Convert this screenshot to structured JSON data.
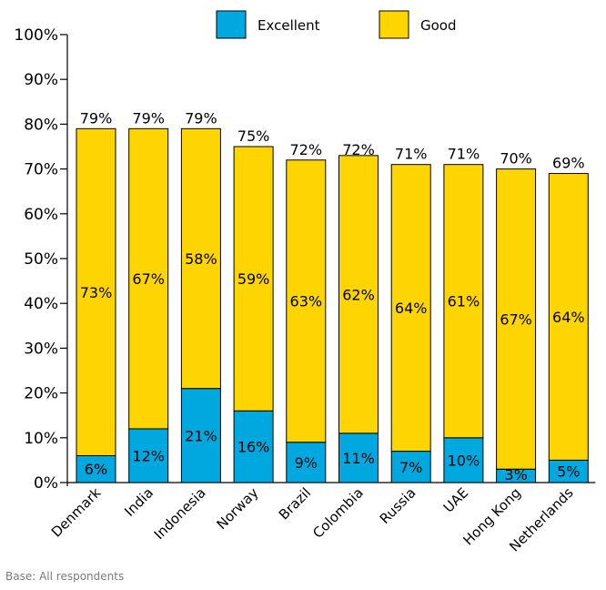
{
  "chart_data": {
    "type": "bar",
    "stacked": true,
    "categories": [
      "Denmark",
      "India",
      "Indonesia",
      "Norway",
      "Brazil",
      "Colombia",
      "Russia",
      "UAE",
      "Hong Kong",
      "Netherlands"
    ],
    "series": [
      {
        "name": "Excellent",
        "color": "#00A8E0",
        "values": [
          6,
          12,
          21,
          16,
          9,
          11,
          7,
          10,
          3,
          5
        ]
      },
      {
        "name": "Good",
        "color": "#FFD500",
        "values": [
          73,
          67,
          58,
          59,
          63,
          62,
          64,
          61,
          67,
          64
        ]
      }
    ],
    "totals": [
      79,
      79,
      79,
      75,
      72,
      72,
      71,
      71,
      70,
      69
    ],
    "ylim": [
      0,
      100
    ],
    "yticks": [
      "0%",
      "10%",
      "20%",
      "30%",
      "40%",
      "50%",
      "60%",
      "70%",
      "80%",
      "90%",
      "100%"
    ],
    "legend_position": "top",
    "grid": false
  },
  "footnote": "Base: All respondents"
}
